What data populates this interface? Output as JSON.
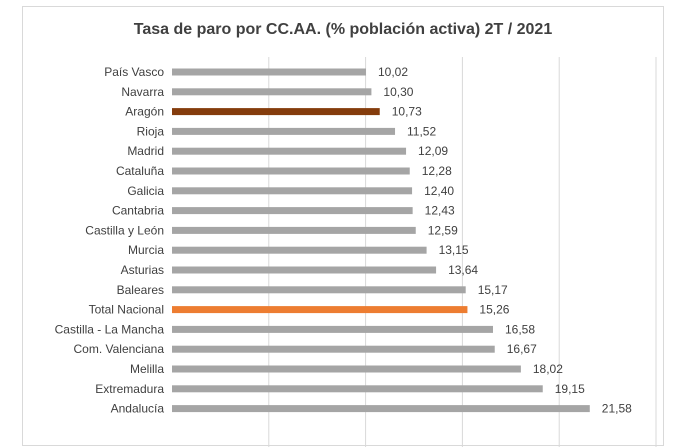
{
  "chart_data": {
    "type": "bar",
    "orientation": "horizontal",
    "title": "Tasa de paro por CC.AA. (% población activa) 2T / 2021",
    "xlabel": "",
    "ylabel": "",
    "xlim": [
      0,
      25
    ],
    "grid": true,
    "legend": "none",
    "decimal_separator": ",",
    "categories": [
      "País Vasco",
      "Navarra",
      "Aragón",
      "Rioja",
      "Madrid",
      "Cataluña",
      "Galicia",
      "Cantabria",
      "Castilla y León",
      "Murcia",
      "Asturias",
      "Baleares",
      "Total Nacional",
      "Castilla - La Mancha",
      "Com. Valenciana",
      "Melilla",
      "Extremadura",
      "Andalucía"
    ],
    "values": [
      10.02,
      10.3,
      10.73,
      11.52,
      12.09,
      12.28,
      12.4,
      12.43,
      12.59,
      13.15,
      13.64,
      15.17,
      15.26,
      16.58,
      16.67,
      18.02,
      19.15,
      21.58
    ],
    "value_labels": [
      "10,02",
      "10,30",
      "10,73",
      "11,52",
      "12,09",
      "12,28",
      "12,40",
      "12,43",
      "12,59",
      "13,15",
      "13,64",
      "15,17",
      "15,26",
      "16,58",
      "16,67",
      "18,02",
      "19,15",
      "21,58"
    ],
    "colors": {
      "default": "#a5a5a5",
      "highlight": {
        "Aragón": "#843c0c",
        "Total Nacional": "#ed7d31"
      }
    }
  }
}
